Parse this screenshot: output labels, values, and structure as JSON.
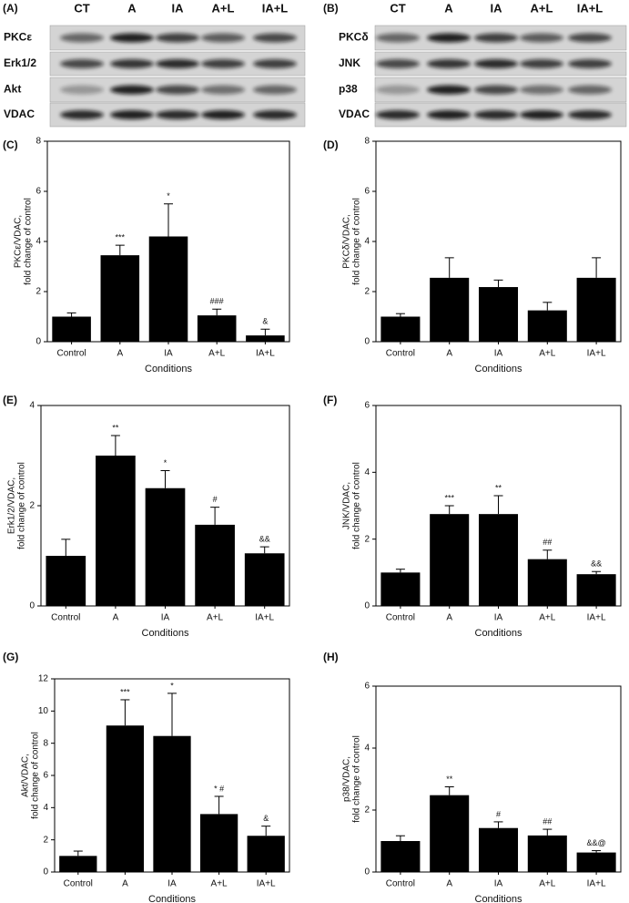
{
  "blots": [
    {
      "panel": "(A)",
      "lanes": [
        "CT",
        "A",
        "IA",
        "A+L",
        "IA+L"
      ],
      "rows": [
        "PKCε",
        "Erk1/2",
        "Akt",
        "VDAC"
      ]
    },
    {
      "panel": "(B)",
      "lanes": [
        "CT",
        "A",
        "IA",
        "A+L",
        "IA+L"
      ],
      "rows": [
        "PKCδ",
        "JNK",
        "p38",
        "VDAC"
      ]
    }
  ],
  "chart_data": [
    {
      "type": "bar",
      "panel": "(C)",
      "xlabel": "Conditions",
      "ylabel": [
        "PKCε/VDAC,",
        "fold change of control"
      ],
      "categories": [
        "Control",
        "A",
        "IA",
        "A+L",
        "IA+L"
      ],
      "values": [
        1.0,
        3.45,
        4.2,
        1.05,
        0.25
      ],
      "errors": [
        0.15,
        0.4,
        1.3,
        0.25,
        0.25
      ],
      "annotations": [
        null,
        "***",
        "*",
        "###",
        "&"
      ],
      "color": "#000000",
      "ylim": [
        0,
        8
      ],
      "yticks": [
        0,
        2,
        4,
        6,
        8
      ]
    },
    {
      "type": "bar",
      "panel": "(D)",
      "xlabel": "Conditions",
      "ylabel": [
        "PKCδ/VDAC,",
        "fold change of control"
      ],
      "categories": [
        "Control",
        "A",
        "IA",
        "A+L",
        "IA+L"
      ],
      "values": [
        1.0,
        2.55,
        2.18,
        1.25,
        2.55
      ],
      "errors": [
        0.12,
        0.8,
        0.28,
        0.32,
        0.8
      ],
      "color": "#000000",
      "ylim": [
        0,
        8
      ],
      "yticks": [
        0,
        2,
        4,
        6,
        8
      ]
    },
    {
      "type": "bar",
      "panel": "(E)",
      "xlabel": "Conditions",
      "ylabel": [
        "Erk1/2/VDAC,",
        "fold change of control"
      ],
      "categories": [
        "Control",
        "A",
        "IA",
        "A+L",
        "IA+L"
      ],
      "values": [
        1.0,
        3.0,
        2.35,
        1.62,
        1.05
      ],
      "errors": [
        0.33,
        0.4,
        0.35,
        0.35,
        0.13
      ],
      "annotations": [
        null,
        "**",
        "*",
        "#",
        "&&"
      ],
      "color": "#000000",
      "ylim": [
        0,
        4
      ],
      "yticks": [
        0,
        2,
        4
      ]
    },
    {
      "type": "bar",
      "panel": "(F)",
      "xlabel": "Conditions",
      "ylabel": [
        "JNK/VDAC,",
        "fold change of control"
      ],
      "categories": [
        "Control",
        "A",
        "IA",
        "A+L",
        "IA+L"
      ],
      "values": [
        1.0,
        2.75,
        2.75,
        1.4,
        0.95
      ],
      "errors": [
        0.1,
        0.25,
        0.55,
        0.27,
        0.08
      ],
      "annotations": [
        null,
        "***",
        "**",
        "##",
        "&&"
      ],
      "color": "#000000",
      "ylim": [
        0,
        6
      ],
      "yticks": [
        0,
        2,
        4,
        6
      ]
    },
    {
      "type": "bar",
      "panel": "(G)",
      "xlabel": "Conditions",
      "ylabel": [
        "Akt/VDAC,",
        "fold change of control"
      ],
      "categories": [
        "Control",
        "A",
        "IA",
        "A+L",
        "IA+L"
      ],
      "values": [
        1.0,
        9.1,
        8.45,
        3.6,
        2.25
      ],
      "errors": [
        0.3,
        1.6,
        2.65,
        1.1,
        0.6
      ],
      "annotations": [
        null,
        "***",
        "*",
        "* #",
        "&"
      ],
      "color": "#000000",
      "ylim": [
        0,
        12
      ],
      "yticks": [
        0,
        2,
        4,
        6,
        8,
        10,
        12
      ]
    },
    {
      "type": "bar",
      "panel": "(H)",
      "xlabel": "Conditions",
      "ylabel": [
        "p38/VDAC,",
        "fold change of control"
      ],
      "categories": [
        "Control",
        "A",
        "IA",
        "A+L",
        "IA+L"
      ],
      "values": [
        1.0,
        2.48,
        1.42,
        1.18,
        0.63
      ],
      "errors": [
        0.17,
        0.27,
        0.2,
        0.2,
        0.06
      ],
      "annotations": [
        null,
        "**",
        "#",
        "##",
        "&&@"
      ],
      "color": "#000000",
      "ylim": [
        0,
        6
      ],
      "yticks": [
        0,
        2,
        4,
        6
      ]
    }
  ]
}
